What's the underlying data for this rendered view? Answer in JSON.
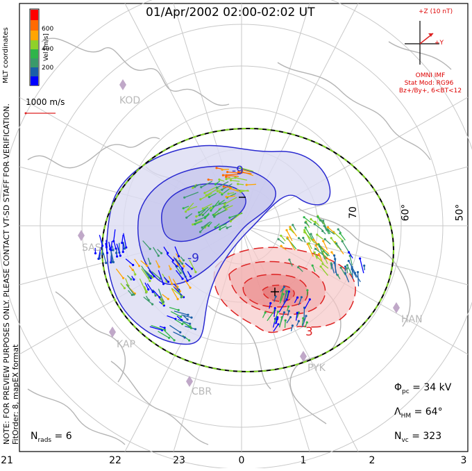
{
  "title": "01/Apr/2002 02:00-02:02 UT",
  "side_note": {
    "line1": "NOTE: FOR PREVIEW PURPOSES ONLY. PLEASE CONTACT VT-SD STAFF FOR VERIFICATION.",
    "line2": "FitOrder: 8, mapEX format"
  },
  "coordinates": "MLT coordinates",
  "colorbar": {
    "label": "Vel [m/s]",
    "ticks": [
      "600",
      "400",
      "200"
    ],
    "colors": [
      "#0000ff",
      "#1a5fa8",
      "#3a9a6a",
      "#2fb54a",
      "#8fd12a",
      "#ffa500",
      "#ff6a00",
      "#ff0000"
    ]
  },
  "scale": {
    "label": "1000 m/s"
  },
  "imf": {
    "z_label": "+Z (10 nT)",
    "y_label": "+Y",
    "source": "OMNI IMF",
    "model": "Stat Mod: RG96",
    "condition": "Bz+/By+, 6<BT<12"
  },
  "stations": [
    "KOD",
    "SAS",
    "KAP",
    "CBR",
    "PYK",
    "HAN"
  ],
  "latitudes": [
    "70",
    "60°",
    "50°"
  ],
  "contour_labels": {
    "neg": "-9",
    "neg2": "-9",
    "min": "−",
    "max": "+",
    "pos": "3"
  },
  "stats": {
    "phi_pc_sym": "Φ",
    "phi_pc_sub": "pc",
    "phi_pc_val": " = 34 kV",
    "lambda_sym": "Λ",
    "lambda_sub": "HM",
    "lambda_val": " = 64°",
    "nvc_sym": "N",
    "nvc_sub": "vc",
    "nvc_val": " = 323",
    "nrads_sym": "N",
    "nrads_sub": "rads",
    "nrads_val": " = 6"
  },
  "mlt_hours": [
    "21",
    "22",
    "23",
    "0",
    "1",
    "2",
    "3"
  ],
  "colors": {
    "negative_cell": "#2a2ad0",
    "positive_cell": "#dd2222",
    "boundary_green": "#7ed321",
    "grid": "#c8c8c8",
    "coast": "#b0b0b0"
  }
}
